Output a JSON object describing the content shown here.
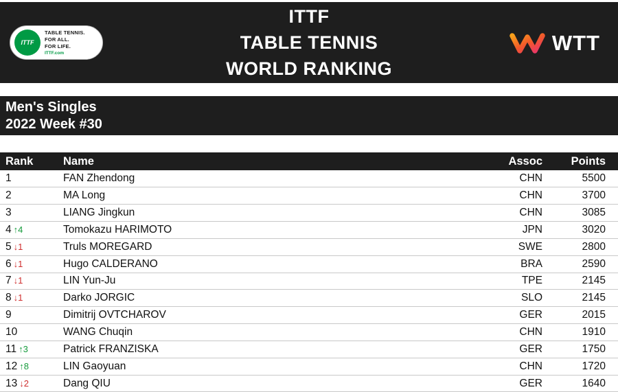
{
  "header": {
    "title_lines": [
      "ITTF",
      "TABLE TENNIS",
      "WORLD RANKING"
    ],
    "ittf_logo": {
      "circle_text": "ITTF",
      "lines": [
        "TABLE TENNIS.",
        "FOR ALL.",
        "FOR LIFE."
      ],
      "site": "ITTF.com"
    },
    "wtt_text": "WTT"
  },
  "subheader": {
    "category": "Men's Singles",
    "week": "2022 Week #30"
  },
  "table": {
    "columns": {
      "rank": "Rank",
      "name": "Name",
      "assoc": "Assoc",
      "points": "Points"
    },
    "rows": [
      {
        "rank": "1",
        "move": "",
        "delta": "",
        "name": "FAN Zhendong",
        "assoc": "CHN",
        "points": "5500"
      },
      {
        "rank": "2",
        "move": "",
        "delta": "",
        "name": "MA Long",
        "assoc": "CHN",
        "points": "3700"
      },
      {
        "rank": "3",
        "move": "",
        "delta": "",
        "name": "LIANG Jingkun",
        "assoc": "CHN",
        "points": "3085"
      },
      {
        "rank": "4",
        "move": "up",
        "delta": "4",
        "name": "Tomokazu HARIMOTO",
        "assoc": "JPN",
        "points": "3020"
      },
      {
        "rank": "5",
        "move": "down",
        "delta": "1",
        "name": "Truls MOREGARD",
        "assoc": "SWE",
        "points": "2800"
      },
      {
        "rank": "6",
        "move": "down",
        "delta": "1",
        "name": "Hugo CALDERANO",
        "assoc": "BRA",
        "points": "2590"
      },
      {
        "rank": "7",
        "move": "down",
        "delta": "1",
        "name": "LIN Yun-Ju",
        "assoc": "TPE",
        "points": "2145"
      },
      {
        "rank": "8",
        "move": "down",
        "delta": "1",
        "name": "Darko JORGIC",
        "assoc": "SLO",
        "points": "2145"
      },
      {
        "rank": "9",
        "move": "",
        "delta": "",
        "name": "Dimitrij OVTCHAROV",
        "assoc": "GER",
        "points": "2015"
      },
      {
        "rank": "10",
        "move": "",
        "delta": "",
        "name": "WANG Chuqin",
        "assoc": "CHN",
        "points": "1910"
      },
      {
        "rank": "11",
        "move": "up",
        "delta": "3",
        "name": "Patrick FRANZISKA",
        "assoc": "GER",
        "points": "1750"
      },
      {
        "rank": "12",
        "move": "up",
        "delta": "8",
        "name": "LIN Gaoyuan",
        "assoc": "CHN",
        "points": "1720"
      },
      {
        "rank": "13",
        "move": "down",
        "delta": "2",
        "name": "Dang QIU",
        "assoc": "GER",
        "points": "1640"
      }
    ]
  },
  "colors": {
    "bar_bg": "#1e1e1e",
    "up_green": "#169b3c",
    "down_red": "#cf2e2e",
    "ittf_green": "#009a44",
    "wtt_orange": "#f1592a"
  }
}
